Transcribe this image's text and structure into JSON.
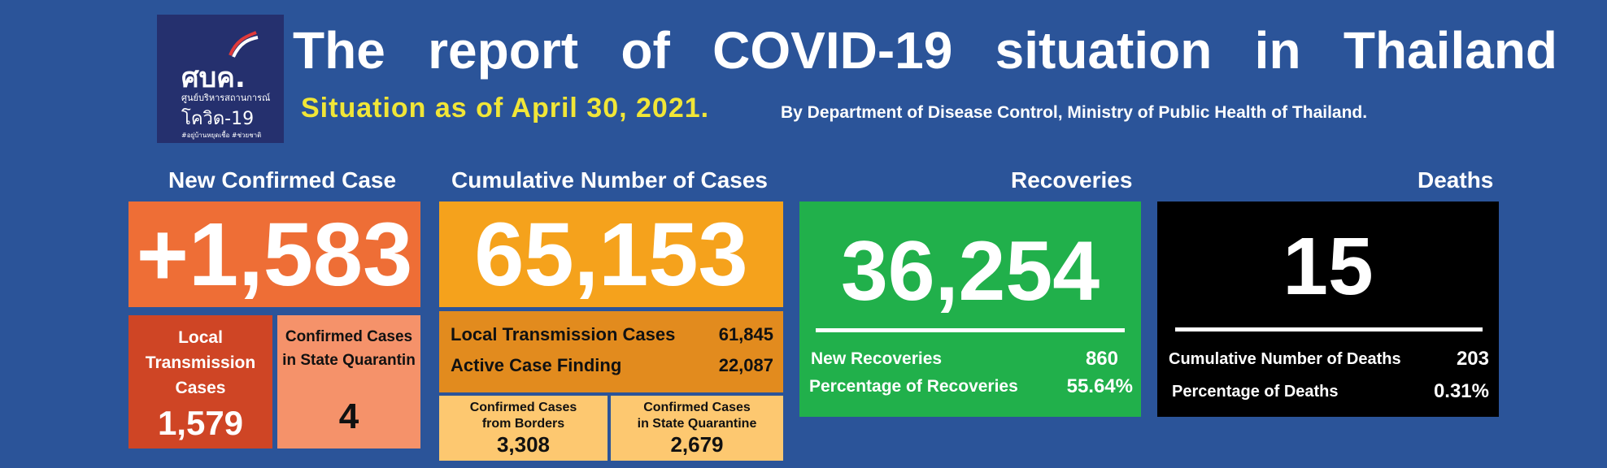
{
  "header": {
    "logo": {
      "line1": "ศบค.",
      "line2": "ศูนย์บริหารสถานการณ์",
      "line3": "โควิด-19",
      "line4": "#อยู่บ้านหยุดเชื้อ #ช่วยชาติ"
    },
    "title_words": [
      "The",
      "report",
      "of",
      "COVID-19",
      "situation",
      "in",
      "Thailand"
    ],
    "situation": "Situation as of April 30, 2021.",
    "source": "By Department of Disease Control, Ministry of Public Health of Thailand."
  },
  "new_confirmed": {
    "label": "New Confirmed Case",
    "value": "+1,583",
    "local": {
      "label_1": "Local",
      "label_2": "Transmission",
      "label_3": "Cases",
      "value": "1,579"
    },
    "state_quarantine": {
      "label_1": "Confirmed Cases",
      "label_2": "in State Quarantin",
      "value": "4"
    }
  },
  "cumulative": {
    "label": "Cumulative Number of Cases",
    "value": "65,153",
    "local_label": "Local Transmission Cases",
    "local_value": "61,845",
    "active_label": "Active Case Finding",
    "active_value": "22,087",
    "borders": {
      "label_1": "Confirmed Cases",
      "label_2": "from Borders",
      "value": "3,308"
    },
    "state_quarantine": {
      "label_1": "Confirmed Cases",
      "label_2": "in State Quarantine",
      "value": "2,679"
    }
  },
  "recoveries": {
    "label": "Recoveries",
    "value": "36,254",
    "new_label": "New Recoveries",
    "new_value": "860",
    "pct_label": "Percentage of Recoveries",
    "pct_value": "55.64%"
  },
  "deaths": {
    "label": "Deaths",
    "value": "15",
    "cum_label": "Cumulative Number of Deaths",
    "cum_value": "203",
    "pct_label": "Percentage of Deaths",
    "pct_value": "0.31%"
  },
  "colors": {
    "background": "#2b5499",
    "new_confirmed": "#ee6e36",
    "cumulative": "#f5a21c",
    "recoveries": "#21b04b",
    "deaths": "#000000",
    "situation_text": "#f1e637"
  }
}
